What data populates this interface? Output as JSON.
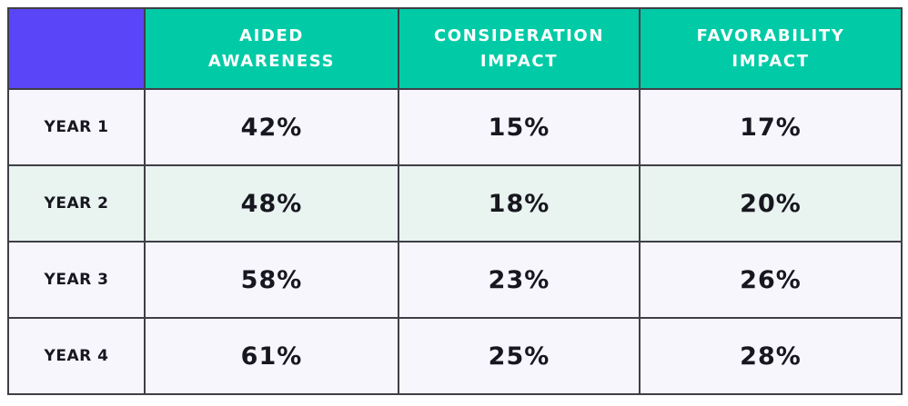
{
  "chart_data": {
    "type": "table",
    "title": "",
    "columns": [
      {
        "label": "",
        "line1": "",
        "line2": ""
      },
      {
        "label": "AIDED AWARENESS",
        "line1": "AIDED",
        "line2": "AWARENESS"
      },
      {
        "label": "CONSIDERATION IMPACT",
        "line1": "CONSIDERATION",
        "line2": "IMPACT"
      },
      {
        "label": "FAVORABILITY IMPACT",
        "line1": "FAVORABILITY",
        "line2": "IMPACT"
      }
    ],
    "rows": [
      {
        "label": "YEAR 1",
        "values": [
          "42%",
          "15%",
          "17%"
        ]
      },
      {
        "label": "YEAR 2",
        "values": [
          "48%",
          "18%",
          "20%"
        ]
      },
      {
        "label": "YEAR 3",
        "values": [
          "58%",
          "23%",
          "26%"
        ]
      },
      {
        "label": "YEAR 4",
        "values": [
          "61%",
          "25%",
          "28%"
        ]
      }
    ],
    "numeric": {
      "categories": [
        "YEAR 1",
        "YEAR 2",
        "YEAR 3",
        "YEAR 4"
      ],
      "series": [
        {
          "name": "AIDED AWARENESS",
          "values": [
            42,
            48,
            58,
            61
          ],
          "unit": "%"
        },
        {
          "name": "CONSIDERATION IMPACT",
          "values": [
            15,
            18,
            23,
            25
          ],
          "unit": "%"
        },
        {
          "name": "FAVORABILITY IMPACT",
          "values": [
            17,
            20,
            26,
            28
          ],
          "unit": "%"
        }
      ]
    }
  },
  "colors": {
    "corner_cell_bg": "#5a46f8",
    "header_bg": "#00cba6",
    "header_text": "#ffffff",
    "row_light_bg": "#f7f6fc",
    "row_mint_bg": "#e9f3ef",
    "border": "#3f3f47",
    "body_text": "#17171f",
    "page_bg": "#ffffff"
  }
}
